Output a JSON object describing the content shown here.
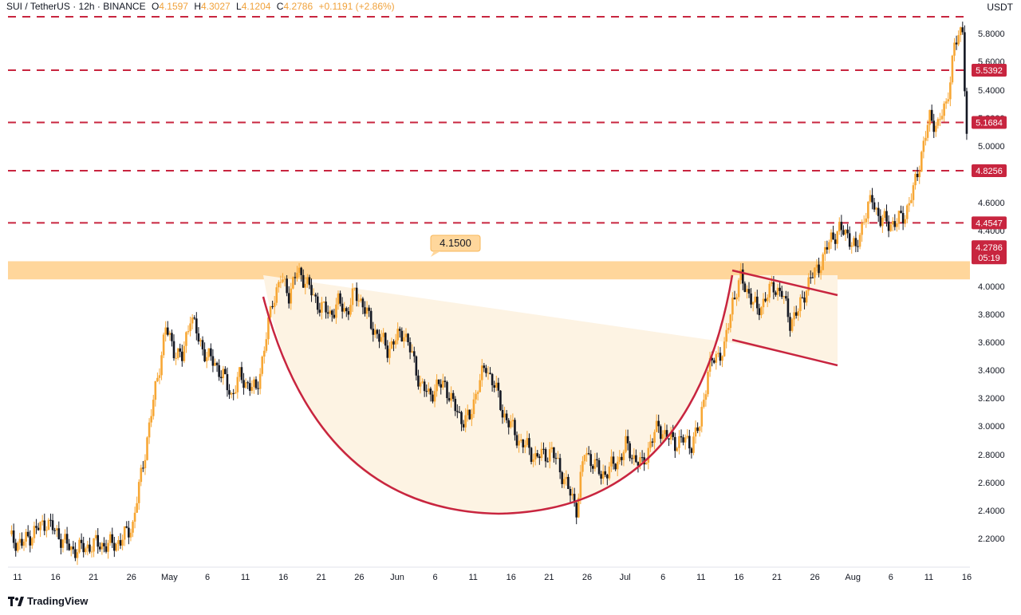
{
  "header": {
    "symbol": "SUI",
    "pair": "TetherUS",
    "timeframe": "12h",
    "exchange": "BINANCE",
    "open_key": "O",
    "open": "4.1597",
    "high_key": "H",
    "high": "4.3027",
    "low_key": "L",
    "low": "4.1204",
    "close_key": "C",
    "close": "4.2786",
    "change": "+0.1191 (+2.86%)"
  },
  "currency": "USDT",
  "brand": "TradingView",
  "colors": {
    "up": "#f7a735",
    "down": "#131722",
    "resistance": "#c8253f",
    "zone": "#ffcf8a",
    "cup_fill": "#fdf3e3",
    "axis_text": "#131722",
    "price_badge": "#c8253f"
  },
  "chart_data": {
    "type": "candlestick",
    "y_axis": {
      "min": 2.0,
      "max": 6.0,
      "ticks": [
        "2.2000",
        "2.4000",
        "2.6000",
        "2.8000",
        "3.0000",
        "3.2000",
        "3.4000",
        "3.6000",
        "3.8000",
        "4.0000",
        "4.4000",
        "4.6000",
        "5.0000",
        "5.2000",
        "5.4000",
        "5.6000",
        "5.8000"
      ]
    },
    "x_axis": {
      "labels": [
        "11",
        "16",
        "21",
        "26",
        "May",
        "6",
        "11",
        "16",
        "21",
        "26",
        "Jun",
        "6",
        "11",
        "16",
        "21",
        "26",
        "Jul",
        "6",
        "11",
        "16",
        "21",
        "26",
        "Aug",
        "6",
        "11",
        "16"
      ]
    },
    "resistance_levels": [
      "5.5392",
      "5.1684",
      "4.8256",
      "4.4547"
    ],
    "top_level_value": 5.92,
    "support_zone": {
      "label": "4.1500",
      "from": 4.05,
      "to": 4.18
    },
    "current_price": {
      "value": "4.2786",
      "countdown": "05:19"
    },
    "patterns": [
      "cup",
      "bull flag"
    ],
    "price_path": [
      [
        0,
        2.2
      ],
      [
        6,
        2.16
      ],
      [
        12,
        2.25
      ],
      [
        18,
        2.32
      ],
      [
        24,
        2.22
      ],
      [
        30,
        2.12
      ],
      [
        36,
        2.13
      ],
      [
        42,
        2.16
      ],
      [
        48,
        2.15
      ],
      [
        54,
        2.18
      ],
      [
        60,
        2.3
      ],
      [
        64,
        2.65
      ],
      [
        68,
        3.0
      ],
      [
        72,
        3.35
      ],
      [
        76,
        3.7
      ],
      [
        80,
        3.55
      ],
      [
        84,
        3.48
      ],
      [
        88,
        3.8
      ],
      [
        92,
        3.62
      ],
      [
        96,
        3.5
      ],
      [
        100,
        3.45
      ],
      [
        104,
        3.35
      ],
      [
        108,
        3.22
      ],
      [
        112,
        3.35
      ],
      [
        116,
        3.3
      ],
      [
        120,
        3.25
      ],
      [
        124,
        3.55
      ],
      [
        128,
        3.9
      ],
      [
        132,
        4.05
      ],
      [
        136,
        3.95
      ],
      [
        140,
        4.1
      ],
      [
        144,
        4.05
      ],
      [
        148,
        3.92
      ],
      [
        152,
        3.85
      ],
      [
        156,
        3.8
      ],
      [
        160,
        3.88
      ],
      [
        164,
        3.82
      ],
      [
        168,
        3.95
      ],
      [
        172,
        3.88
      ],
      [
        176,
        3.72
      ],
      [
        180,
        3.64
      ],
      [
        184,
        3.55
      ],
      [
        188,
        3.62
      ],
      [
        192,
        3.68
      ],
      [
        196,
        3.5
      ],
      [
        200,
        3.3
      ],
      [
        204,
        3.22
      ],
      [
        208,
        3.28
      ],
      [
        212,
        3.3
      ],
      [
        216,
        3.15
      ],
      [
        220,
        3.05
      ],
      [
        224,
        3.05
      ],
      [
        228,
        3.3
      ],
      [
        232,
        3.42
      ],
      [
        236,
        3.3
      ],
      [
        240,
        3.1
      ],
      [
        244,
        3.0
      ],
      [
        248,
        2.9
      ],
      [
        252,
        2.85
      ],
      [
        256,
        2.78
      ],
      [
        260,
        2.8
      ],
      [
        264,
        2.82
      ],
      [
        268,
        2.7
      ],
      [
        272,
        2.55
      ],
      [
        276,
        2.42
      ],
      [
        280,
        2.82
      ],
      [
        284,
        2.75
      ],
      [
        288,
        2.65
      ],
      [
        292,
        2.7
      ],
      [
        296,
        2.75
      ],
      [
        300,
        2.86
      ],
      [
        304,
        2.78
      ],
      [
        308,
        2.72
      ],
      [
        312,
        2.88
      ],
      [
        316,
        3.0
      ],
      [
        320,
        2.92
      ],
      [
        324,
        2.89
      ],
      [
        328,
        2.9
      ],
      [
        332,
        2.88
      ],
      [
        336,
        3.0
      ],
      [
        340,
        3.4
      ],
      [
        344,
        3.5
      ],
      [
        348,
        3.55
      ],
      [
        352,
        3.9
      ],
      [
        356,
        4.05
      ],
      [
        360,
        3.95
      ],
      [
        364,
        3.82
      ],
      [
        368,
        3.92
      ],
      [
        372,
        4.0
      ],
      [
        376,
        3.95
      ],
      [
        380,
        3.75
      ],
      [
        384,
        3.82
      ],
      [
        388,
        4.0
      ],
      [
        392,
        4.1
      ],
      [
        396,
        4.2
      ],
      [
        400,
        4.35
      ],
      [
        404,
        4.4
      ],
      [
        408,
        4.38
      ],
      [
        412,
        4.25
      ],
      [
        416,
        4.5
      ],
      [
        420,
        4.62
      ],
      [
        424,
        4.48
      ],
      [
        428,
        4.45
      ],
      [
        432,
        4.46
      ],
      [
        436,
        4.52
      ],
      [
        440,
        4.68
      ],
      [
        444,
        4.95
      ],
      [
        448,
        5.2
      ],
      [
        452,
        5.15
      ],
      [
        456,
        5.3
      ],
      [
        460,
        5.7
      ],
      [
        464,
        5.85
      ],
      [
        468,
        4.28
      ]
    ]
  }
}
